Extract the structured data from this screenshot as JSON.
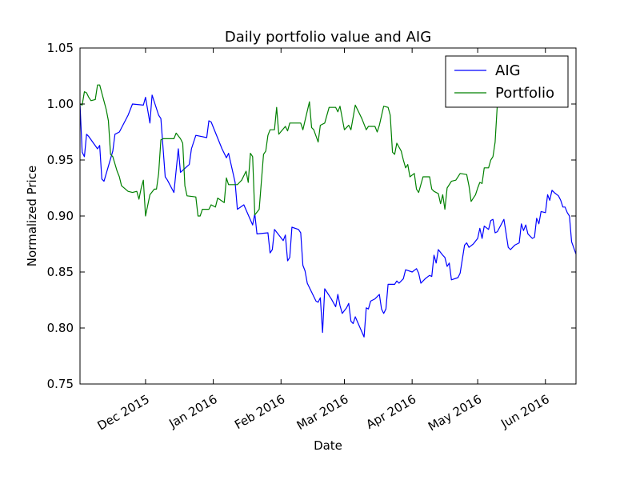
{
  "chart_data": {
    "type": "line",
    "title": "Daily portfolio value and AIG",
    "xlabel": "Date",
    "ylabel": "Normalized Price",
    "xlim": [
      "2015-11-01",
      "2016-06-15"
    ],
    "ylim": [
      0.75,
      1.05
    ],
    "yticks": [
      "0.75",
      "0.80",
      "0.85",
      "0.90",
      "0.95",
      "1.00",
      "1.05"
    ],
    "xticks": [
      {
        "date": "2015-12-01",
        "label": "Dec 2015"
      },
      {
        "date": "2016-01-01",
        "label": "Jan 2016"
      },
      {
        "date": "2016-02-01",
        "label": "Feb 2016"
      },
      {
        "date": "2016-03-01",
        "label": "Mar 2016"
      },
      {
        "date": "2016-04-01",
        "label": "Apr 2016"
      },
      {
        "date": "2016-05-01",
        "label": "May 2016"
      },
      {
        "date": "2016-06-01",
        "label": "Jun 2016"
      }
    ],
    "grid": false,
    "legend": "top-right",
    "series": [
      {
        "name": "AIG",
        "color": "#0000ff",
        "points": [
          [
            "2015-11-01",
            1.0
          ],
          [
            "2015-11-02",
            0.957
          ],
          [
            "2015-11-03",
            0.953
          ],
          [
            "2015-11-04",
            0.973
          ],
          [
            "2015-11-05",
            0.971
          ],
          [
            "2015-11-09",
            0.96
          ],
          [
            "2015-11-10",
            0.963
          ],
          [
            "2015-11-11",
            0.933
          ],
          [
            "2015-11-12",
            0.931
          ],
          [
            "2015-11-16",
            0.958
          ],
          [
            "2015-11-17",
            0.973
          ],
          [
            "2015-11-19",
            0.975
          ],
          [
            "2015-11-23",
            0.99
          ],
          [
            "2015-11-25",
            1.0
          ],
          [
            "2015-11-30",
            0.999
          ],
          [
            "2015-12-01",
            1.006
          ],
          [
            "2015-12-03",
            0.983
          ],
          [
            "2015-12-04",
            1.008
          ],
          [
            "2015-12-07",
            0.99
          ],
          [
            "2015-12-08",
            0.987
          ],
          [
            "2015-12-10",
            0.935
          ],
          [
            "2015-12-11",
            0.932
          ],
          [
            "2015-12-14",
            0.921
          ],
          [
            "2015-12-16",
            0.96
          ],
          [
            "2015-12-17",
            0.939
          ],
          [
            "2015-12-21",
            0.946
          ],
          [
            "2015-12-22",
            0.96
          ],
          [
            "2015-12-24",
            0.972
          ],
          [
            "2015-12-29",
            0.97
          ],
          [
            "2015-12-30",
            0.985
          ],
          [
            "2015-12-31",
            0.984
          ],
          [
            "2016-01-05",
            0.96
          ],
          [
            "2016-01-07",
            0.952
          ],
          [
            "2016-01-08",
            0.956
          ],
          [
            "2016-01-11",
            0.93
          ],
          [
            "2016-01-12",
            0.906
          ],
          [
            "2016-01-15",
            0.91
          ],
          [
            "2016-01-19",
            0.892
          ],
          [
            "2016-01-20",
            0.902
          ],
          [
            "2016-01-21",
            0.884
          ],
          [
            "2016-01-26",
            0.885
          ],
          [
            "2016-01-27",
            0.867
          ],
          [
            "2016-01-28",
            0.87
          ],
          [
            "2016-01-29",
            0.888
          ],
          [
            "2016-02-02",
            0.878
          ],
          [
            "2016-02-03",
            0.883
          ],
          [
            "2016-02-04",
            0.86
          ],
          [
            "2016-02-05",
            0.863
          ],
          [
            "2016-02-06",
            0.89
          ],
          [
            "2016-02-09",
            0.888
          ],
          [
            "2016-02-10",
            0.885
          ],
          [
            "2016-02-11",
            0.856
          ],
          [
            "2016-02-12",
            0.851
          ],
          [
            "2016-02-13",
            0.84
          ],
          [
            "2016-02-17",
            0.824
          ],
          [
            "2016-02-18",
            0.823
          ],
          [
            "2016-02-19",
            0.827
          ],
          [
            "2016-02-20",
            0.796
          ],
          [
            "2016-02-21",
            0.835
          ],
          [
            "2016-02-24",
            0.826
          ],
          [
            "2016-02-26",
            0.819
          ],
          [
            "2016-02-27",
            0.83
          ],
          [
            "2016-02-28",
            0.82
          ],
          [
            "2016-02-29",
            0.813
          ],
          [
            "2016-03-02",
            0.818
          ],
          [
            "2016-03-03",
            0.822
          ],
          [
            "2016-03-04",
            0.806
          ],
          [
            "2016-03-05",
            0.804
          ],
          [
            "2016-03-06",
            0.81
          ],
          [
            "2016-03-10",
            0.792
          ],
          [
            "2016-03-11",
            0.818
          ],
          [
            "2016-03-12",
            0.817
          ],
          [
            "2016-03-13",
            0.824
          ],
          [
            "2016-03-15",
            0.826
          ],
          [
            "2016-03-17",
            0.83
          ],
          [
            "2016-03-18",
            0.817
          ],
          [
            "2016-03-19",
            0.813
          ],
          [
            "2016-03-20",
            0.817
          ],
          [
            "2016-03-21",
            0.839
          ],
          [
            "2016-03-24",
            0.839
          ],
          [
            "2016-03-25",
            0.842
          ],
          [
            "2016-03-26",
            0.84
          ],
          [
            "2016-03-28",
            0.844
          ],
          [
            "2016-03-29",
            0.852
          ],
          [
            "2016-04-01",
            0.85
          ],
          [
            "2016-04-03",
            0.853
          ],
          [
            "2016-04-04",
            0.849
          ],
          [
            "2016-04-05",
            0.84
          ],
          [
            "2016-04-07",
            0.844
          ],
          [
            "2016-04-09",
            0.847
          ],
          [
            "2016-04-10",
            0.846
          ],
          [
            "2016-04-11",
            0.865
          ],
          [
            "2016-04-12",
            0.858
          ],
          [
            "2016-04-13",
            0.87
          ],
          [
            "2016-04-15",
            0.865
          ],
          [
            "2016-04-16",
            0.863
          ],
          [
            "2016-04-17",
            0.855
          ],
          [
            "2016-04-18",
            0.858
          ],
          [
            "2016-04-19",
            0.843
          ],
          [
            "2016-04-22",
            0.845
          ],
          [
            "2016-04-23",
            0.849
          ],
          [
            "2016-04-25",
            0.874
          ],
          [
            "2016-04-26",
            0.876
          ],
          [
            "2016-04-27",
            0.872
          ],
          [
            "2016-04-29",
            0.875
          ],
          [
            "2016-05-01",
            0.88
          ],
          [
            "2016-05-02",
            0.889
          ],
          [
            "2016-05-03",
            0.88
          ],
          [
            "2016-05-04",
            0.891
          ],
          [
            "2016-05-06",
            0.888
          ],
          [
            "2016-05-07",
            0.896
          ],
          [
            "2016-05-08",
            0.897
          ],
          [
            "2016-05-09",
            0.885
          ],
          [
            "2016-05-10",
            0.886
          ],
          [
            "2016-05-13",
            0.897
          ],
          [
            "2016-05-15",
            0.872
          ],
          [
            "2016-05-16",
            0.87
          ],
          [
            "2016-05-17",
            0.872
          ],
          [
            "2016-05-18",
            0.874
          ],
          [
            "2016-05-20",
            0.876
          ],
          [
            "2016-05-21",
            0.893
          ],
          [
            "2016-05-22",
            0.887
          ],
          [
            "2016-05-23",
            0.892
          ],
          [
            "2016-05-24",
            0.884
          ],
          [
            "2016-05-26",
            0.88
          ],
          [
            "2016-05-27",
            0.881
          ],
          [
            "2016-05-28",
            0.898
          ],
          [
            "2016-05-29",
            0.893
          ],
          [
            "2016-05-30",
            0.904
          ],
          [
            "2016-06-01",
            0.903
          ],
          [
            "2016-06-02",
            0.919
          ],
          [
            "2016-06-03",
            0.914
          ],
          [
            "2016-06-04",
            0.923
          ],
          [
            "2016-06-05",
            0.921
          ],
          [
            "2016-06-07",
            0.918
          ],
          [
            "2016-06-08",
            0.914
          ],
          [
            "2016-06-09",
            0.908
          ],
          [
            "2016-06-10",
            0.908
          ],
          [
            "2016-06-11",
            0.903
          ],
          [
            "2016-06-12",
            0.9
          ],
          [
            "2016-06-13",
            0.877
          ],
          [
            "2016-06-15",
            0.866
          ]
        ]
      },
      {
        "name": "Portfolio",
        "color": "#008000",
        "points": [
          [
            "2015-11-01",
            1.0
          ],
          [
            "2015-11-02",
            0.999
          ],
          [
            "2015-11-03",
            1.011
          ],
          [
            "2015-11-04",
            1.01
          ],
          [
            "2015-11-05",
            1.006
          ],
          [
            "2015-11-06",
            1.003
          ],
          [
            "2015-11-08",
            1.004
          ],
          [
            "2015-11-09",
            1.017
          ],
          [
            "2015-11-10",
            1.017
          ],
          [
            "2015-11-13",
            0.995
          ],
          [
            "2015-11-14",
            0.985
          ],
          [
            "2015-11-15",
            0.955
          ],
          [
            "2015-11-16",
            0.953
          ],
          [
            "2015-11-18",
            0.94
          ],
          [
            "2015-11-19",
            0.935
          ],
          [
            "2015-11-20",
            0.927
          ],
          [
            "2015-11-23",
            0.922
          ],
          [
            "2015-11-25",
            0.921
          ],
          [
            "2015-11-27",
            0.922
          ],
          [
            "2015-11-28",
            0.915
          ],
          [
            "2015-11-29",
            0.925
          ],
          [
            "2015-11-30",
            0.932
          ],
          [
            "2015-12-01",
            0.9
          ],
          [
            "2015-12-03",
            0.919
          ],
          [
            "2015-12-05",
            0.924
          ],
          [
            "2015-12-06",
            0.924
          ],
          [
            "2015-12-07",
            0.938
          ],
          [
            "2015-12-08",
            0.968
          ],
          [
            "2015-12-09",
            0.969
          ],
          [
            "2015-12-14",
            0.969
          ],
          [
            "2015-12-15",
            0.974
          ],
          [
            "2015-12-17",
            0.969
          ],
          [
            "2015-12-18",
            0.965
          ],
          [
            "2015-12-19",
            0.927
          ],
          [
            "2015-12-20",
            0.918
          ],
          [
            "2015-12-24",
            0.917
          ],
          [
            "2015-12-25",
            0.9
          ],
          [
            "2015-12-26",
            0.9
          ],
          [
            "2015-12-27",
            0.906
          ],
          [
            "2015-12-30",
            0.906
          ],
          [
            "2015-12-31",
            0.91
          ],
          [
            "2016-01-02",
            0.908
          ],
          [
            "2016-01-03",
            0.916
          ],
          [
            "2016-01-06",
            0.912
          ],
          [
            "2016-01-07",
            0.934
          ],
          [
            "2016-01-08",
            0.928
          ],
          [
            "2016-01-12",
            0.928
          ],
          [
            "2016-01-13",
            0.93
          ],
          [
            "2016-01-14",
            0.932
          ],
          [
            "2016-01-16",
            0.94
          ],
          [
            "2016-01-17",
            0.93
          ],
          [
            "2016-01-18",
            0.956
          ],
          [
            "2016-01-19",
            0.953
          ],
          [
            "2016-01-20",
            0.901
          ],
          [
            "2016-01-22",
            0.906
          ],
          [
            "2016-01-24",
            0.955
          ],
          [
            "2016-01-25",
            0.958
          ],
          [
            "2016-01-26",
            0.972
          ],
          [
            "2016-01-27",
            0.977
          ],
          [
            "2016-01-29",
            0.977
          ],
          [
            "2016-01-30",
            0.997
          ],
          [
            "2016-01-31",
            0.973
          ],
          [
            "2016-02-03",
            0.98
          ],
          [
            "2016-02-04",
            0.976
          ],
          [
            "2016-02-05",
            0.983
          ],
          [
            "2016-02-10",
            0.983
          ],
          [
            "2016-02-11",
            0.977
          ],
          [
            "2016-02-14",
            1.002
          ],
          [
            "2016-02-15",
            0.979
          ],
          [
            "2016-02-16",
            0.977
          ],
          [
            "2016-02-18",
            0.966
          ],
          [
            "2016-02-19",
            0.981
          ],
          [
            "2016-02-21",
            0.983
          ],
          [
            "2016-02-23",
            0.997
          ],
          [
            "2016-02-26",
            0.997
          ],
          [
            "2016-02-27",
            0.993
          ],
          [
            "2016-02-28",
            0.998
          ],
          [
            "2016-03-01",
            0.977
          ],
          [
            "2016-03-03",
            0.981
          ],
          [
            "2016-03-04",
            0.977
          ],
          [
            "2016-03-06",
            0.999
          ],
          [
            "2016-03-09",
            0.987
          ],
          [
            "2016-03-11",
            0.977
          ],
          [
            "2016-03-12",
            0.98
          ],
          [
            "2016-03-15",
            0.98
          ],
          [
            "2016-03-16",
            0.975
          ],
          [
            "2016-03-17",
            0.981
          ],
          [
            "2016-03-19",
            0.998
          ],
          [
            "2016-03-21",
            0.997
          ],
          [
            "2016-03-22",
            0.99
          ],
          [
            "2016-03-23",
            0.957
          ],
          [
            "2016-03-24",
            0.955
          ],
          [
            "2016-03-25",
            0.965
          ],
          [
            "2016-03-27",
            0.958
          ],
          [
            "2016-03-28",
            0.95
          ],
          [
            "2016-03-29",
            0.943
          ],
          [
            "2016-03-30",
            0.946
          ],
          [
            "2016-03-31",
            0.935
          ],
          [
            "2016-04-02",
            0.938
          ],
          [
            "2016-04-03",
            0.924
          ],
          [
            "2016-04-04",
            0.921
          ],
          [
            "2016-04-06",
            0.935
          ],
          [
            "2016-04-07",
            0.935
          ],
          [
            "2016-04-09",
            0.935
          ],
          [
            "2016-04-10",
            0.924
          ],
          [
            "2016-04-11",
            0.922
          ],
          [
            "2016-04-13",
            0.92
          ],
          [
            "2016-04-14",
            0.911
          ],
          [
            "2016-04-15",
            0.919
          ],
          [
            "2016-04-16",
            0.906
          ],
          [
            "2016-04-17",
            0.925
          ],
          [
            "2016-04-19",
            0.931
          ],
          [
            "2016-04-21",
            0.932
          ],
          [
            "2016-04-23",
            0.938
          ],
          [
            "2016-04-26",
            0.937
          ],
          [
            "2016-04-27",
            0.927
          ],
          [
            "2016-04-28",
            0.913
          ],
          [
            "2016-04-30",
            0.919
          ],
          [
            "2016-05-01",
            0.925
          ],
          [
            "2016-05-02",
            0.93
          ],
          [
            "2016-05-03",
            0.929
          ],
          [
            "2016-05-04",
            0.943
          ],
          [
            "2016-05-06",
            0.943
          ],
          [
            "2016-05-07",
            0.95
          ],
          [
            "2016-05-08",
            0.953
          ],
          [
            "2016-05-09",
            0.966
          ],
          [
            "2016-05-10",
            1.0
          ],
          [
            "2016-05-12",
            1.012
          ],
          [
            "2016-05-13",
            1.021
          ]
        ]
      }
    ]
  }
}
